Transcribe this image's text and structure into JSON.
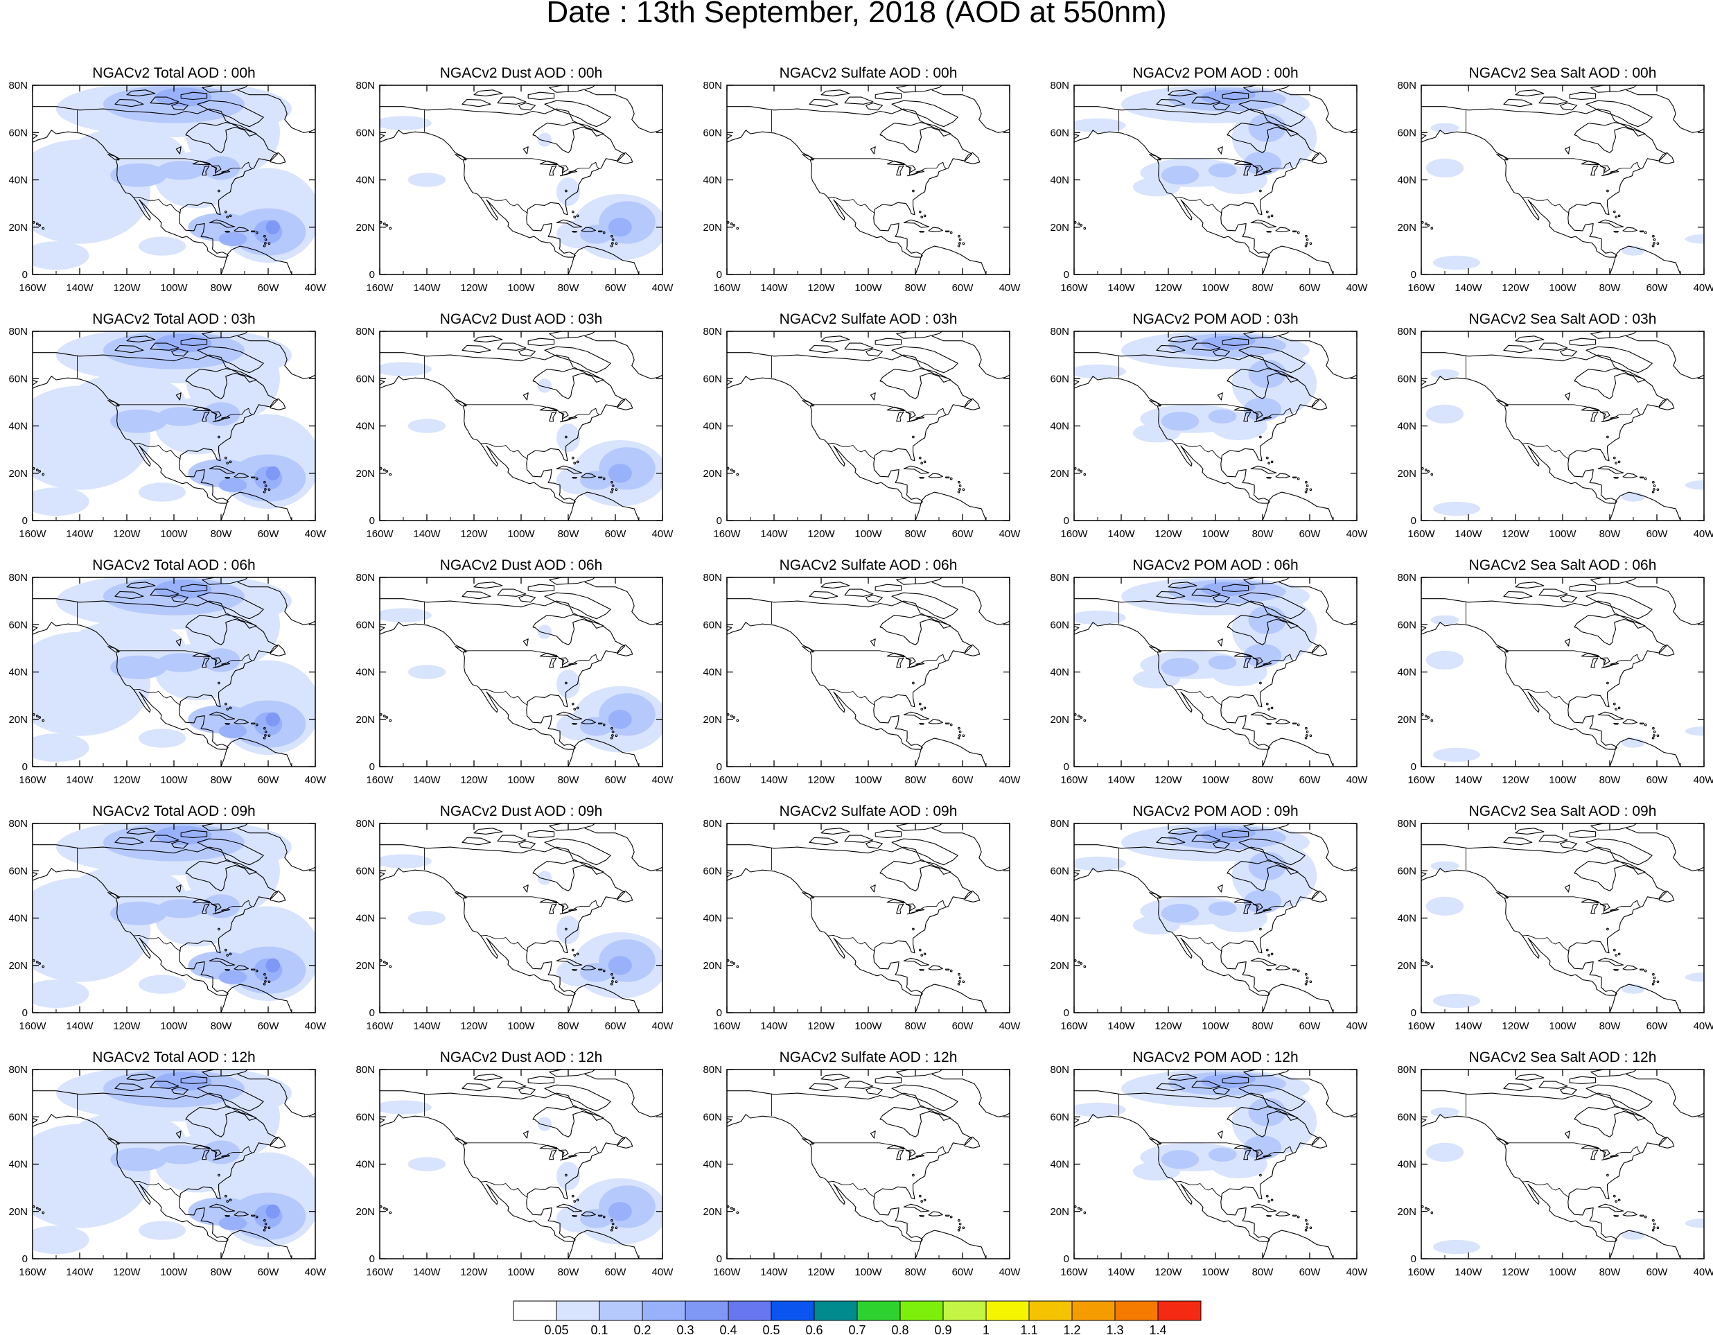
{
  "figure": {
    "title": "Date : 13th September, 2018 (AOD at 550nm)"
  },
  "rows": [
    {
      "hour": "00h",
      "titles": [
        "NGACv2 Total AOD : 00h",
        "NGACv2 Dust AOD : 00h",
        "NGACv2 Sulfate AOD : 00h",
        "NGACv2 POM AOD : 00h",
        "NGACv2 Sea Salt AOD : 00h"
      ]
    },
    {
      "hour": "03h",
      "titles": [
        "NGACv2 Total AOD : 03h",
        "NGACv2 Dust AOD : 03h",
        "NGACv2 Sulfate AOD : 03h",
        "NGACv2 POM AOD : 03h",
        "NGACv2 Sea Salt AOD : 03h"
      ]
    },
    {
      "hour": "06h",
      "titles": [
        "NGACv2 Total AOD : 06h",
        "NGACv2 Dust AOD : 06h",
        "NGACv2 Sulfate AOD : 06h",
        "NGACv2 POM AOD : 06h",
        "NGACv2 Sea Salt AOD : 06h"
      ]
    },
    {
      "hour": "09h",
      "titles": [
        "NGACv2 Total AOD : 09h",
        "NGACv2 Dust AOD : 09h",
        "NGACv2 Sulfate AOD : 09h",
        "NGACv2 POM AOD : 09h",
        "NGACv2 Sea Salt  AOD : 09h"
      ]
    },
    {
      "hour": "12h",
      "titles": [
        "NGACv2 Total AOD  : 12h",
        "NGACv2 Dust AOD : 12h",
        "NGACv2 Sulfate AOD : 12h",
        "NGACv2 POM  AOD : 12h",
        "NGACv2 Sea Salt  AOD : 12h"
      ]
    }
  ],
  "map": {
    "lon_range": [
      -160,
      -40
    ],
    "lat_range": [
      0,
      80
    ],
    "x_ticks": [
      "160W",
      "140W",
      "120W",
      "100W",
      "80W",
      "60W",
      "40W"
    ],
    "y_ticks": [
      "0",
      "20N",
      "40N",
      "60N",
      "80N"
    ]
  },
  "colorbar": {
    "labels": [
      "0.05",
      "0.1",
      "0.2",
      "0.3",
      "0.4",
      "0.5",
      "0.6",
      "0.7",
      "0.8",
      "0.9",
      "1",
      "1.1",
      "1.2",
      "1.3",
      "1.4"
    ],
    "colors": [
      "#ffffff",
      "#d8e3fd",
      "#b6c9fc",
      "#98b1fa",
      "#7f97f5",
      "#6677ef",
      "#0a55f0",
      "#008b8f",
      "#2ed22e",
      "#7cf00a",
      "#c4f545",
      "#f5f500",
      "#f5c300",
      "#f59c00",
      "#f57a00",
      "#f52a12"
    ]
  },
  "species_style": [
    {
      "species": "Total",
      "coverage": "broad"
    },
    {
      "species": "Dust",
      "coverage": "atlantic-caribbean"
    },
    {
      "species": "Sulfate",
      "coverage": "none"
    },
    {
      "species": "POM",
      "coverage": "canada-us-smoke"
    },
    {
      "species": "Sea Salt",
      "coverage": "sparse-ocean"
    }
  ]
}
